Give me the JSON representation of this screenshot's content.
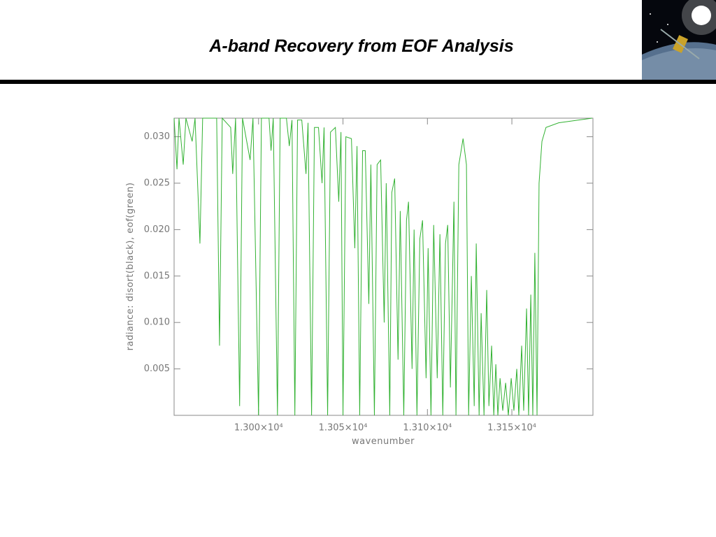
{
  "chart_data": {
    "type": "line",
    "title": "A-band Recovery from EOF Analysis",
    "x_label": "wavenumber",
    "y_label": "radiance: disort(black), eof(green)",
    "color": "#33b233",
    "xlim": [
      12950,
      13198
    ],
    "ylim": [
      0,
      0.032
    ],
    "xticks": [
      {
        "value": 13000,
        "label": "1.300×10⁴"
      },
      {
        "value": 13050,
        "label": "1.305×10⁴"
      },
      {
        "value": 13100,
        "label": "1.310×10⁴"
      },
      {
        "value": 13150,
        "label": "1.315×10⁴"
      }
    ],
    "yticks": [
      0.005,
      {
        "value": 0.01,
        "label": "0.010"
      },
      0.015,
      {
        "value": 0.02,
        "label": "0.020"
      },
      0.025,
      {
        "value": 0.03,
        "label": "0.030"
      }
    ],
    "x": [
      12950,
      12951.7,
      12952.9,
      12955.4,
      12957.0,
      12960.7,
      12962.4,
      12965.3,
      12966.9,
      12975.2,
      12976.9,
      12978.5,
      12983.5,
      12984.7,
      12986.4,
      12988.8,
      12990.5,
      12995.0,
      12996.7,
      13000.0,
      13001.7,
      13006.2,
      13007.4,
      13008.7,
      13011.2,
      13012.8,
      13016.5,
      13018.2,
      13019.8,
      13021.5,
      13023.1,
      13025.6,
      13028.1,
      13029.3,
      13031.4,
      13033.1,
      13035.5,
      13037.6,
      13038.8,
      13040.9,
      13042.6,
      13045.5,
      13047.5,
      13048.8,
      13050.0,
      13051.7,
      13055.0,
      13057.0,
      13058.3,
      13059.9,
      13061.6,
      13063.2,
      13065.3,
      13066.5,
      13068.6,
      13070.2,
      13072.3,
      13074.4,
      13075.6,
      13077.7,
      13078.9,
      13080.6,
      13082.6,
      13083.9,
      13086.0,
      13087.6,
      13088.8,
      13090.9,
      13092.1,
      13093.8,
      13095.5,
      13097.1,
      13099.2,
      13100.4,
      13102.1,
      13103.7,
      13105.8,
      13107.4,
      13109.1,
      13110.7,
      13112.0,
      13113.6,
      13115.7,
      13116.9,
      13118.6,
      13121.1,
      13123.1,
      13124.4,
      13126.0,
      13127.7,
      13128.9,
      13130.6,
      13131.8,
      13133.5,
      13135.1,
      13136.4,
      13138.0,
      13139.3,
      13140.5,
      13141.7,
      13143.0,
      13144.6,
      13146.3,
      13147.9,
      13149.6,
      13151.2,
      13152.9,
      13154.1,
      13155.8,
      13157.0,
      13158.7,
      13159.9,
      13161.2,
      13162.4,
      13163.6,
      13164.9,
      13166.1,
      13167.8,
      13170.2,
      13177.7,
      13197.5
    ],
    "values": [
      0.032,
      0.0265,
      0.032,
      0.027,
      0.032,
      0.0295,
      0.032,
      0.0185,
      0.032,
      0.032,
      0.0075,
      0.032,
      0.031,
      0.026,
      0.032,
      0.001,
      0.032,
      0.0275,
      0.032,
      0.0,
      0.032,
      0.032,
      0.0285,
      0.032,
      0.0,
      0.032,
      0.032,
      0.029,
      0.0318,
      0.0,
      0.0318,
      0.0318,
      0.026,
      0.0315,
      0.0,
      0.031,
      0.031,
      0.025,
      0.031,
      0.0,
      0.0305,
      0.031,
      0.023,
      0.0305,
      0.0,
      0.03,
      0.0298,
      0.018,
      0.029,
      0.0,
      0.0285,
      0.0285,
      0.012,
      0.027,
      0.0,
      0.027,
      0.0275,
      0.01,
      0.025,
      0.0,
      0.024,
      0.0255,
      0.006,
      0.022,
      0.0,
      0.021,
      0.023,
      0.005,
      0.02,
      0.0,
      0.019,
      0.021,
      0.004,
      0.018,
      0.0,
      0.0205,
      0.004,
      0.0195,
      0.0,
      0.0185,
      0.0205,
      0.003,
      0.023,
      0.0,
      0.027,
      0.0298,
      0.027,
      0.0,
      0.015,
      0.001,
      0.0185,
      0.0,
      0.011,
      0.0,
      0.0135,
      0.001,
      0.0075,
      0.0,
      0.0055,
      0.0,
      0.004,
      0.0005,
      0.0035,
      0.0,
      0.004,
      0.0005,
      0.005,
      0.0,
      0.0075,
      0.0005,
      0.0115,
      0.0,
      0.013,
      0.0,
      0.0175,
      0.0,
      0.025,
      0.0295,
      0.031,
      0.0315,
      0.032
    ]
  }
}
